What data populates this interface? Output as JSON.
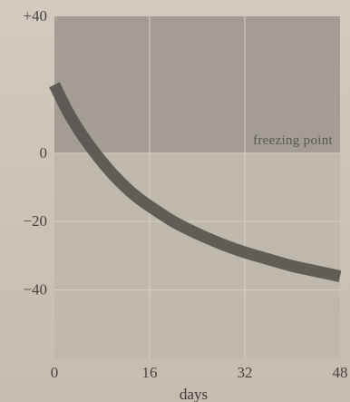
{
  "chart_data": {
    "type": "line",
    "xlabel": "days",
    "ylabel": "",
    "xlim": [
      0,
      48
    ],
    "ylim": [
      -60,
      40
    ],
    "x_ticks": [
      {
        "value": 0,
        "label": "0"
      },
      {
        "value": 16,
        "label": "16"
      },
      {
        "value": 32,
        "label": "32"
      },
      {
        "value": 48,
        "label": "48"
      }
    ],
    "y_ticks": [
      {
        "value": 40,
        "label": "+40"
      },
      {
        "value": 0,
        "label": "0"
      },
      {
        "value": -20,
        "label": "−20"
      },
      {
        "value": -40,
        "label": "−40"
      }
    ],
    "grid": true,
    "annotations": [
      {
        "text": "freezing point",
        "y": 0
      }
    ],
    "series": [
      {
        "x": [
          0,
          2,
          4,
          6,
          8,
          10,
          12,
          14,
          16,
          20,
          24,
          28,
          32,
          36,
          40,
          44,
          48
        ],
        "y": [
          20,
          13,
          7,
          2,
          -2.5,
          -6.5,
          -10,
          -13,
          -15.5,
          -20,
          -23.5,
          -26.5,
          -29,
          -31,
          -33,
          -34.5,
          -36
        ]
      }
    ],
    "colors": {
      "above_band": "#a49d94",
      "below_band": "#bfb8ac",
      "curve": "#5b5651",
      "grid": "#d6d0c6"
    }
  }
}
